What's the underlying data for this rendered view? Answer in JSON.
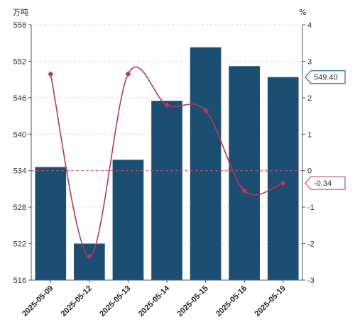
{
  "chart_data": {
    "type": "bar+line",
    "categories": [
      "2025-05-09",
      "2025-05-12",
      "2025-05-13",
      "2025-05-14",
      "2025-05-15",
      "2025-05-16",
      "2025-05-19"
    ],
    "series": [
      {
        "axis": "left",
        "type": "bar",
        "values": [
          534.6,
          522.0,
          535.8,
          545.5,
          554.3,
          551.2,
          549.4
        ]
      },
      {
        "axis": "right",
        "type": "line",
        "values": [
          2.65,
          -2.35,
          2.65,
          1.8,
          1.65,
          -0.55,
          -0.34
        ]
      }
    ],
    "y_left": {
      "unit": "万吨",
      "min": 516,
      "max": 558,
      "ticks": [
        516,
        522,
        528,
        534,
        540,
        546,
        552,
        558
      ]
    },
    "y_right": {
      "unit": "%",
      "min": -3,
      "max": 4,
      "ticks": [
        -3,
        -2,
        -1,
        0,
        1,
        2,
        3,
        4
      ]
    },
    "callouts": {
      "bar_last": "549.40",
      "line_last": "-0.34"
    },
    "colors": {
      "bar": "#1c4e74",
      "line": "#b33a55",
      "bar_callout_border": "#2f6e9f",
      "line_callout_border": "#c0506a",
      "grid": "#dddddd",
      "zero_line": "#c0506a"
    },
    "grid": true
  }
}
